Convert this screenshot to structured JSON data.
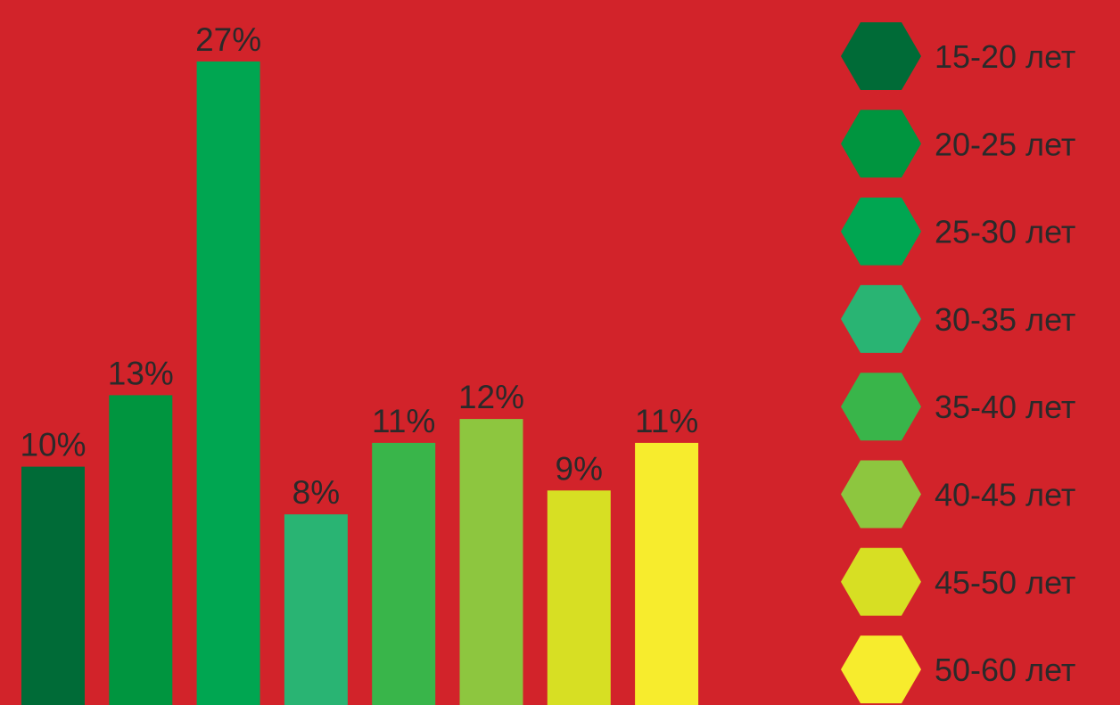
{
  "chart_data": {
    "type": "bar",
    "categories": [
      "15-20 лет",
      "20-25 лет",
      "25-30 лет",
      "30-35 лет",
      "35-40 лет",
      "40-45 лет",
      "45-50 лет",
      "50-60 лет"
    ],
    "values": [
      10,
      13,
      27,
      8,
      11,
      12,
      9,
      11
    ],
    "value_labels": [
      "10%",
      "13%",
      "27%",
      "8%",
      "11%",
      "12%",
      "9%",
      "11%"
    ],
    "colors": [
      "#006b37",
      "#00953f",
      "#00a651",
      "#29b473",
      "#39b54a",
      "#8dc63f",
      "#d7df23",
      "#f7ec2d"
    ],
    "background": "#d2232a",
    "ylim": [
      0,
      27
    ],
    "legend": {
      "placement": "right",
      "marker_shape": "hexagon",
      "items": [
        "15-20 лет",
        "20-25 лет",
        "25-30 лет",
        "30-35 лет",
        "35-40 лет",
        "40-45 лет",
        "45-50 лет",
        "50-60 лет"
      ]
    },
    "grid": false,
    "title": "",
    "xlabel": "",
    "ylabel": ""
  }
}
